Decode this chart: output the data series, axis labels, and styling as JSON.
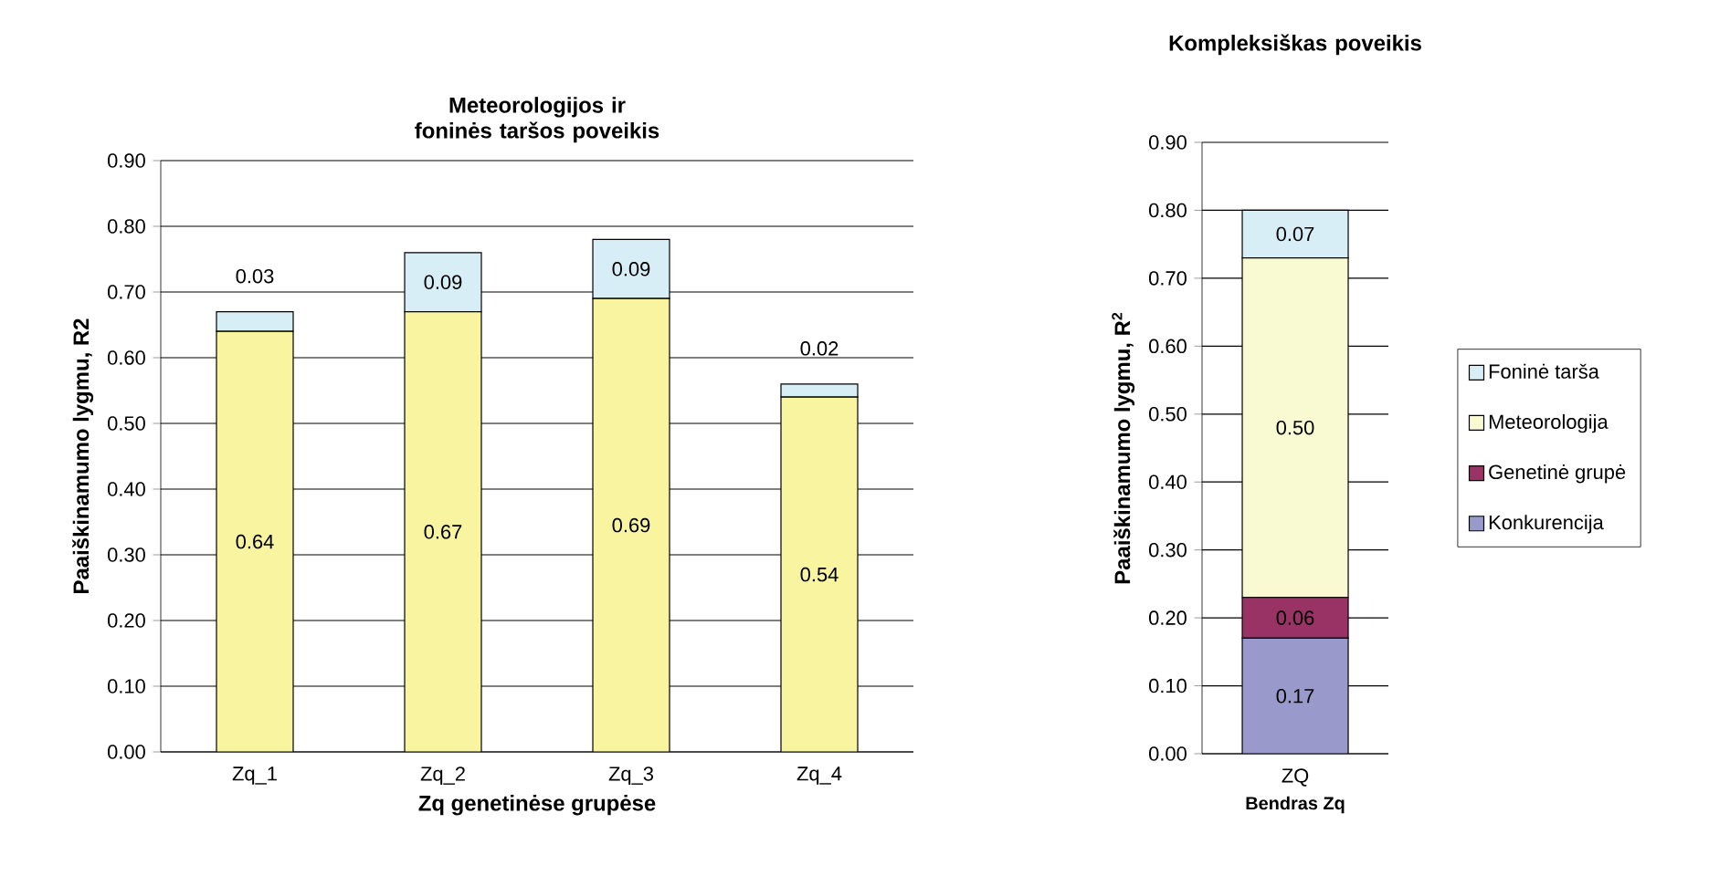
{
  "chart_data": [
    {
      "type": "bar",
      "title": "Meteorologijos ir foninės taršos poveikis",
      "xlabel": "Zq genetinėse grupėse",
      "ylabel": "Paaiškinamumo lygmu, R2",
      "categories": [
        "Zq_1",
        "Zq_2",
        "Zq_3",
        "Zq_4"
      ],
      "stacked": true,
      "series": [
        {
          "color": "#f8f4a0",
          "values": [
            0.64,
            0.67,
            0.69,
            0.54
          ],
          "value_labels": [
            "0.64",
            "0.67",
            "0.69",
            "0.54"
          ]
        },
        {
          "color": "#d8eef6",
          "values": [
            0.03,
            0.09,
            0.09,
            0.02
          ],
          "value_labels": [
            "0.03",
            "0.09",
            "0.09",
            "0.02"
          ]
        }
      ],
      "ylim": [
        0,
        0.9
      ],
      "yticks": [
        {
          "value": 0,
          "label": "0.00"
        },
        {
          "value": 0.1,
          "label": "0.10"
        },
        {
          "value": 0.2,
          "label": "0.20"
        },
        {
          "value": 0.3,
          "label": "0.30"
        },
        {
          "value": 0.4,
          "label": "0.40"
        },
        {
          "value": 0.5,
          "label": "0.50"
        },
        {
          "value": 0.6,
          "label": "0.60"
        },
        {
          "value": 0.7,
          "label": "0.70"
        },
        {
          "value": 0.8,
          "label": "0.80"
        },
        {
          "value": 0.9,
          "label": "0.90"
        }
      ],
      "grid": "y",
      "legend": false
    },
    {
      "type": "bar",
      "title": "Kompleksiškas poveikis",
      "xlabel": "Bendras Zq",
      "ylabel": "Paaiškinamumo lygmu, R$^{2}$",
      "categories": [
        "ZQ"
      ],
      "stacked": true,
      "series": [
        {
          "name": "Konkurencija",
          "color": "#9999cc",
          "values": [
            0.17
          ],
          "value_labels": [
            "0.17"
          ]
        },
        {
          "name": "Genetinė grupė",
          "color": "#993366",
          "values": [
            0.06
          ],
          "value_labels": [
            "0.06"
          ]
        },
        {
          "name": "Meteorologija",
          "color": "#fafad2",
          "values": [
            0.5
          ],
          "value_labels": [
            "0.50"
          ]
        },
        {
          "name": "Foninė tarša",
          "color": "#d8eef6",
          "values": [
            0.07
          ],
          "value_labels": [
            "0.07"
          ]
        }
      ],
      "ylim": [
        0,
        0.9
      ],
      "yticks": [
        {
          "value": 0,
          "label": "0.00"
        },
        {
          "value": 0.1,
          "label": "0.10"
        },
        {
          "value": 0.2,
          "label": "0.20"
        },
        {
          "value": 0.3,
          "label": "0.30"
        },
        {
          "value": 0.4,
          "label": "0.40"
        },
        {
          "value": 0.5,
          "label": "0.50"
        },
        {
          "value": 0.6,
          "label": "0.60"
        },
        {
          "value": 0.7,
          "label": "0.70"
        },
        {
          "value": 0.8,
          "label": "0.80"
        },
        {
          "value": 0.9,
          "label": "0.90"
        }
      ],
      "grid": "y",
      "legend": "right"
    }
  ]
}
